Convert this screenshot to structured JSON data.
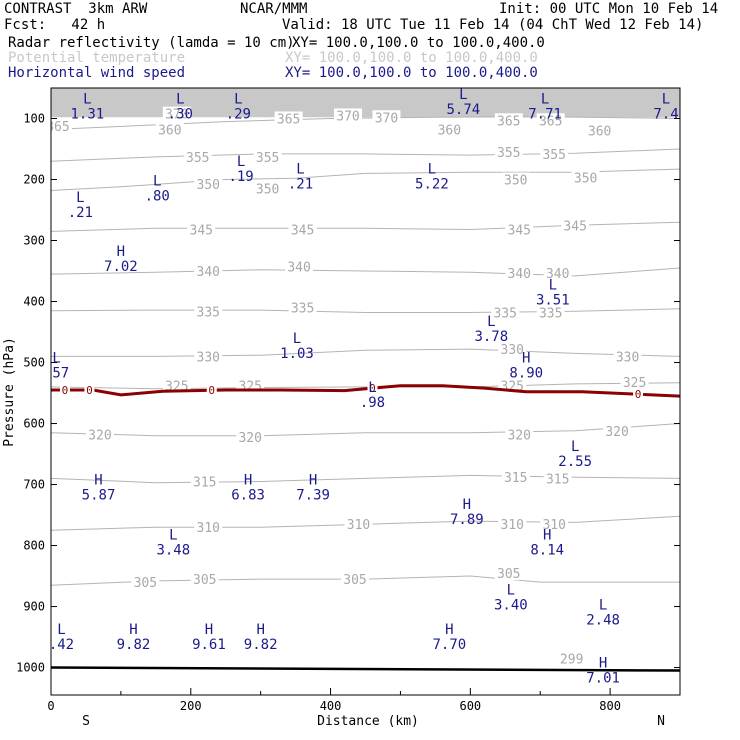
{
  "header": {
    "model": "CONTRAST  3km ARW",
    "org": "NCAR/MMM",
    "init": "Init: 00 UTC Mon 10 Feb 14",
    "fcst": "Fcst:   42 h",
    "valid": "Valid: 18 UTC Tue 11 Feb 14 (04 ChT Wed 12 Feb 14)",
    "fields": [
      {
        "name": "Radar reflectivity (lamda = 10 cm)",
        "xy": "XY= 100.0,100.0 to 100.0,400.0"
      },
      {
        "name": "Potential temperature",
        "xy": "XY= 100.0,100.0 to 100.0,400.0"
      },
      {
        "name": "Horizontal wind speed",
        "xy": "XY= 100.0,100.0 to 100.0,400.0"
      }
    ]
  },
  "colors": {
    "theta": "#b4b4b4",
    "wind": "#1a1a8c",
    "reflectivity": "#8b0000",
    "ground": "#000000"
  },
  "chart_data": {
    "type": "cross-section",
    "xlabel": "Distance (km)",
    "ylabel": "Pressure (hPa)",
    "xlim": [
      0,
      900
    ],
    "ylim": [
      1045,
      50
    ],
    "xticks": [
      0,
      200,
      400,
      600,
      800
    ],
    "yticks": [
      100,
      200,
      300,
      400,
      500,
      600,
      700,
      800,
      900,
      1000
    ],
    "x_end_labels": {
      "left": "S",
      "right": "N"
    },
    "theta_contours": [
      {
        "label": "360",
        "points": [
          [
            0,
            118
          ],
          [
            120,
            112
          ],
          [
            250,
            105
          ],
          [
            400,
            100
          ],
          [
            550,
            98
          ],
          [
            700,
            97
          ],
          [
            900,
            100
          ]
        ]
      },
      {
        "label": "355",
        "points": [
          [
            0,
            170
          ],
          [
            150,
            163
          ],
          [
            300,
            158
          ],
          [
            450,
            158
          ],
          [
            600,
            160
          ],
          [
            750,
            157
          ],
          [
            900,
            150
          ]
        ]
      },
      {
        "label": "350",
        "points": [
          [
            0,
            218
          ],
          [
            100,
            212
          ],
          [
            250,
            200
          ],
          [
            350,
            198
          ],
          [
            450,
            190
          ],
          [
            600,
            188
          ],
          [
            750,
            188
          ],
          [
            900,
            183
          ]
        ]
      },
      {
        "label": "345",
        "points": [
          [
            0,
            285
          ],
          [
            150,
            280
          ],
          [
            300,
            280
          ],
          [
            450,
            280
          ],
          [
            600,
            282
          ],
          [
            750,
            275
          ],
          [
            900,
            270
          ]
        ]
      },
      {
        "label": "340",
        "points": [
          [
            0,
            355
          ],
          [
            150,
            352
          ],
          [
            300,
            348
          ],
          [
            450,
            350
          ],
          [
            600,
            352
          ],
          [
            750,
            358
          ],
          [
            900,
            345
          ]
        ]
      },
      {
        "label": "335",
        "points": [
          [
            0,
            415
          ],
          [
            150,
            414
          ],
          [
            300,
            414
          ],
          [
            450,
            418
          ],
          [
            600,
            418
          ],
          [
            750,
            416
          ],
          [
            900,
            412
          ]
        ]
      },
      {
        "label": "330",
        "points": [
          [
            0,
            490
          ],
          [
            150,
            490
          ],
          [
            300,
            488
          ],
          [
            450,
            480
          ],
          [
            600,
            478
          ],
          [
            750,
            485
          ],
          [
            900,
            490
          ]
        ]
      },
      {
        "label": "325",
        "points": [
          [
            0,
            540
          ],
          [
            150,
            543
          ],
          [
            300,
            541
          ],
          [
            450,
            540
          ],
          [
            600,
            540
          ],
          [
            750,
            535
          ],
          [
            900,
            533
          ]
        ]
      },
      {
        "label": "320",
        "points": [
          [
            0,
            615
          ],
          [
            150,
            620
          ],
          [
            300,
            620
          ],
          [
            450,
            615
          ],
          [
            600,
            615
          ],
          [
            750,
            612
          ],
          [
            900,
            600
          ]
        ]
      },
      {
        "label": "315",
        "points": [
          [
            0,
            690
          ],
          [
            150,
            697
          ],
          [
            300,
            695
          ],
          [
            450,
            690
          ],
          [
            600,
            685
          ],
          [
            750,
            688
          ],
          [
            900,
            690
          ]
        ]
      },
      {
        "label": "310",
        "points": [
          [
            0,
            775
          ],
          [
            150,
            770
          ],
          [
            300,
            770
          ],
          [
            450,
            765
          ],
          [
            600,
            760
          ],
          [
            750,
            762
          ],
          [
            900,
            752
          ]
        ]
      },
      {
        "label": "305",
        "points": [
          [
            0,
            865
          ],
          [
            150,
            858
          ],
          [
            300,
            855
          ],
          [
            450,
            855
          ],
          [
            600,
            850
          ],
          [
            700,
            860
          ],
          [
            900,
            860
          ]
        ]
      }
    ],
    "theta_labels": [
      {
        "x": 10,
        "p": 112,
        "label": "365"
      },
      {
        "x": 180,
        "p": 92,
        "label": "370"
      },
      {
        "x": 340,
        "p": 100,
        "label": "365"
      },
      {
        "x": 425,
        "p": 95,
        "label": "370"
      },
      {
        "x": 480,
        "p": 98,
        "label": "370"
      },
      {
        "x": 655,
        "p": 103,
        "label": "365"
      },
      {
        "x": 715,
        "p": 103,
        "label": "365"
      },
      {
        "x": 170,
        "p": 118,
        "label": "360"
      },
      {
        "x": 570,
        "p": 118,
        "label": "360"
      },
      {
        "x": 785,
        "p": 120,
        "label": "360"
      },
      {
        "x": 210,
        "p": 163,
        "label": "355"
      },
      {
        "x": 310,
        "p": 163,
        "label": "355"
      },
      {
        "x": 655,
        "p": 155,
        "label": "355"
      },
      {
        "x": 720,
        "p": 158,
        "label": "355"
      },
      {
        "x": 225,
        "p": 207,
        "label": "350"
      },
      {
        "x": 310,
        "p": 215,
        "label": "350"
      },
      {
        "x": 665,
        "p": 200,
        "label": "350"
      },
      {
        "x": 765,
        "p": 197,
        "label": "350"
      },
      {
        "x": 215,
        "p": 282,
        "label": "345"
      },
      {
        "x": 360,
        "p": 282,
        "label": "345"
      },
      {
        "x": 670,
        "p": 282,
        "label": "345"
      },
      {
        "x": 750,
        "p": 275,
        "label": "345"
      },
      {
        "x": 225,
        "p": 350,
        "label": "340"
      },
      {
        "x": 355,
        "p": 343,
        "label": "340"
      },
      {
        "x": 670,
        "p": 353,
        "label": "340"
      },
      {
        "x": 725,
        "p": 353,
        "label": "340"
      },
      {
        "x": 225,
        "p": 416,
        "label": "335"
      },
      {
        "x": 360,
        "p": 410,
        "label": "335"
      },
      {
        "x": 650,
        "p": 418,
        "label": "335"
      },
      {
        "x": 715,
        "p": 418,
        "label": "335"
      },
      {
        "x": 225,
        "p": 490,
        "label": "330"
      },
      {
        "x": 660,
        "p": 478,
        "label": "330"
      },
      {
        "x": 825,
        "p": 490,
        "label": "330"
      },
      {
        "x": 180,
        "p": 538,
        "label": "325"
      },
      {
        "x": 285,
        "p": 538,
        "label": "325"
      },
      {
        "x": 660,
        "p": 538,
        "label": "325"
      },
      {
        "x": 835,
        "p": 532,
        "label": "325"
      },
      {
        "x": 70,
        "p": 618,
        "label": "320"
      },
      {
        "x": 285,
        "p": 622,
        "label": "320"
      },
      {
        "x": 670,
        "p": 618,
        "label": "320"
      },
      {
        "x": 810,
        "p": 612,
        "label": "320"
      },
      {
        "x": 220,
        "p": 695,
        "label": "315"
      },
      {
        "x": 665,
        "p": 688,
        "label": "315"
      },
      {
        "x": 725,
        "p": 690,
        "label": "315"
      },
      {
        "x": 225,
        "p": 770,
        "label": "310"
      },
      {
        "x": 440,
        "p": 765,
        "label": "310"
      },
      {
        "x": 660,
        "p": 765,
        "label": "310"
      },
      {
        "x": 720,
        "p": 765,
        "label": "310"
      },
      {
        "x": 135,
        "p": 860,
        "label": "305"
      },
      {
        "x": 220,
        "p": 855,
        "label": "305"
      },
      {
        "x": 435,
        "p": 855,
        "label": "305"
      },
      {
        "x": 655,
        "p": 845,
        "label": "305"
      },
      {
        "x": 745,
        "p": 985,
        "label": "299"
      }
    ],
    "wind_extrema": [
      {
        "x": 52,
        "p": 75,
        "type": "L",
        "value": "1.31"
      },
      {
        "x": 185,
        "p": 75,
        "type": "L",
        "value": ".30"
      },
      {
        "x": 268,
        "p": 75,
        "type": "L",
        "value": ".29"
      },
      {
        "x": 590,
        "p": 68,
        "type": "L",
        "value": "5.74"
      },
      {
        "x": 707,
        "p": 75,
        "type": "L",
        "value": "7.71"
      },
      {
        "x": 880,
        "p": 75,
        "type": "L",
        "value": "7.4"
      },
      {
        "x": 272,
        "p": 178,
        "type": "L",
        "value": ".19"
      },
      {
        "x": 357,
        "p": 190,
        "type": "L",
        "value": ".21"
      },
      {
        "x": 545,
        "p": 190,
        "type": "L",
        "value": "5.22"
      },
      {
        "x": 152,
        "p": 210,
        "type": "L",
        "value": ".80"
      },
      {
        "x": 42,
        "p": 237,
        "type": "L",
        "value": ".21"
      },
      {
        "x": 100,
        "p": 325,
        "type": "H",
        "value": "7.02"
      },
      {
        "x": 718,
        "p": 380,
        "type": "L",
        "value": "3.51"
      },
      {
        "x": 630,
        "p": 440,
        "type": "L",
        "value": "3.78"
      },
      {
        "x": 352,
        "p": 468,
        "type": "L",
        "value": "1.03"
      },
      {
        "x": 680,
        "p": 500,
        "type": "H",
        "value": "8.90"
      },
      {
        "x": 8,
        "p": 500,
        "type": "L",
        "value": ".57"
      },
      {
        "x": 460,
        "p": 548,
        "type": "L",
        "value": ".98"
      },
      {
        "x": 750,
        "p": 645,
        "type": "L",
        "value": "2.55"
      },
      {
        "x": 68,
        "p": 700,
        "type": "H",
        "value": "5.87"
      },
      {
        "x": 282,
        "p": 700,
        "type": "H",
        "value": "6.83"
      },
      {
        "x": 375,
        "p": 700,
        "type": "H",
        "value": "7.39"
      },
      {
        "x": 595,
        "p": 740,
        "type": "H",
        "value": "7.89"
      },
      {
        "x": 175,
        "p": 790,
        "type": "L",
        "value": "3.48"
      },
      {
        "x": 710,
        "p": 790,
        "type": "H",
        "value": "8.14"
      },
      {
        "x": 658,
        "p": 880,
        "type": "L",
        "value": "3.40"
      },
      {
        "x": 790,
        "p": 905,
        "type": "L",
        "value": "2.48"
      },
      {
        "x": 15,
        "p": 945,
        "type": "L",
        "value": ".42"
      },
      {
        "x": 118,
        "p": 945,
        "type": "H",
        "value": "9.82"
      },
      {
        "x": 226,
        "p": 945,
        "type": "H",
        "value": "9.61"
      },
      {
        "x": 300,
        "p": 945,
        "type": "H",
        "value": "9.82"
      },
      {
        "x": 570,
        "p": 945,
        "type": "H",
        "value": "7.70"
      },
      {
        "x": 790,
        "p": 1000,
        "type": "H",
        "value": "7.01"
      }
    ],
    "reflectivity_contour": {
      "label": "0",
      "points": [
        [
          0,
          545
        ],
        [
          60,
          545
        ],
        [
          100,
          553
        ],
        [
          160,
          547
        ],
        [
          250,
          545
        ],
        [
          330,
          545
        ],
        [
          420,
          546
        ],
        [
          500,
          538
        ],
        [
          560,
          538
        ],
        [
          620,
          542
        ],
        [
          680,
          548
        ],
        [
          760,
          548
        ],
        [
          840,
          552
        ],
        [
          900,
          555
        ]
      ],
      "label_x": [
        20,
        55,
        230,
        460,
        840
      ]
    },
    "surface_p": 1000
  }
}
